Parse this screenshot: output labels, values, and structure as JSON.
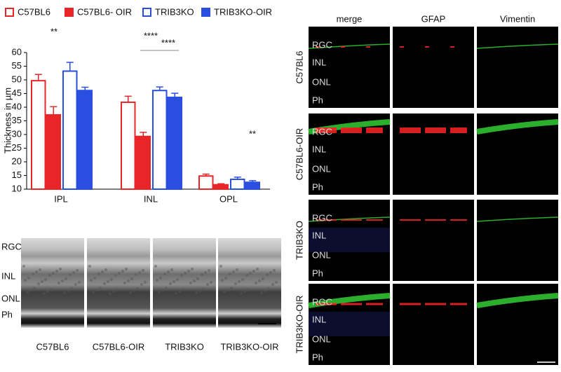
{
  "chart_data": {
    "type": "bar",
    "ylabel": "Thickness in µm",
    "categories": [
      "IPL",
      "INL",
      "OPL"
    ],
    "series": [
      {
        "name": "C57BL6",
        "color": "#e8262a",
        "filled": false,
        "values": [
          49.7,
          41.8,
          14.8
        ],
        "errors": [
          2.3,
          2.2,
          0.7
        ]
      },
      {
        "name": "C57BL6- OIR",
        "color": "#e8262a",
        "filled": true,
        "values": [
          37.2,
          29.3,
          11.6
        ],
        "errors": [
          3.0,
          1.5,
          0.4
        ]
      },
      {
        "name": "TRIB3KO",
        "color": "#2a4fe0",
        "filled": false,
        "values": [
          53.2,
          46.1,
          13.6
        ],
        "errors": [
          3.2,
          1.3,
          0.8
        ]
      },
      {
        "name": "TRIB3KO-OIR",
        "color": "#2a4fe0",
        "filled": true,
        "values": [
          46.1,
          43.6,
          12.5
        ],
        "errors": [
          1.2,
          1.5,
          0.6
        ]
      }
    ],
    "ylim": [
      10,
      60
    ],
    "yticks": [
      10,
      15,
      20,
      25,
      30,
      35,
      40,
      45,
      50,
      55,
      60
    ],
    "annotations": [
      "**",
      "****",
      "****",
      "**"
    ]
  },
  "histology": {
    "layers": [
      "RGC",
      "INL",
      "ONL",
      "Ph"
    ],
    "columns": [
      "C57BL6",
      "C57BL6-OIR",
      "TRIB3KO",
      "TRIB3KO-OIR"
    ]
  },
  "fluorescence": {
    "columns": [
      "merge",
      "GFAP",
      "Vimentin"
    ],
    "rows": [
      "C57BL6",
      "C57BL6-OIR",
      "TRIB3KO",
      "TRIB3KO-OIR"
    ],
    "layers": [
      "RGC",
      "INL",
      "ONL",
      "Ph"
    ]
  }
}
